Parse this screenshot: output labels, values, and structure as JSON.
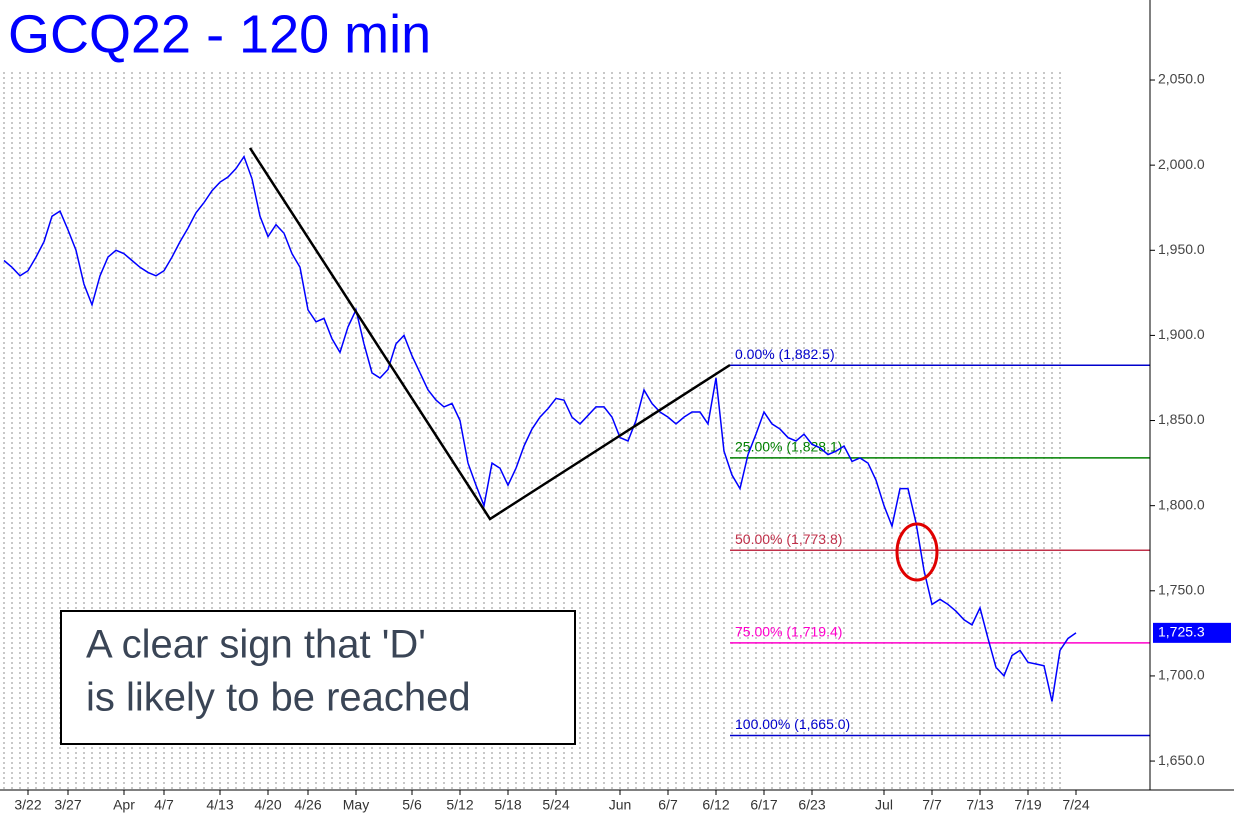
{
  "chart_data": {
    "type": "line",
    "title": "GCQ22 - 120 min",
    "annotation": [
      "A clear sign that 'D'",
      "is likely to be reached"
    ],
    "categories": [
      null,
      null,
      null,
      "3/22",
      null,
      null,
      null,
      null,
      "3/27",
      null,
      null,
      null,
      null,
      null,
      null,
      "Apr",
      null,
      null,
      null,
      null,
      "4/7",
      null,
      null,
      null,
      null,
      null,
      null,
      "4/13",
      null,
      null,
      null,
      null,
      null,
      "4/20",
      null,
      null,
      null,
      null,
      "4/26",
      null,
      null,
      null,
      null,
      null,
      "May",
      null,
      null,
      null,
      null,
      null,
      null,
      "5/6",
      null,
      null,
      null,
      null,
      null,
      "5/12",
      null,
      null,
      null,
      null,
      null,
      "5/18",
      null,
      null,
      null,
      null,
      null,
      "5/24",
      null,
      null,
      null,
      null,
      null,
      null,
      null,
      "Jun",
      null,
      null,
      null,
      null,
      null,
      "6/7",
      null,
      null,
      null,
      null,
      null,
      "6/12",
      null,
      null,
      null,
      null,
      null,
      "6/17",
      null,
      null,
      null,
      null,
      null,
      "6/23",
      null,
      null,
      null,
      null,
      null,
      null,
      null,
      null,
      "Jul",
      null,
      null,
      null,
      null,
      null,
      "7/7",
      null,
      null,
      null,
      null,
      null,
      "7/13",
      null,
      null,
      null,
      null,
      null,
      "7/19",
      null,
      null,
      null,
      null,
      null,
      "7/24"
    ],
    "values": [
      1944,
      1940,
      1935,
      1938,
      1946,
      1955,
      1970,
      1973,
      1962,
      1950,
      1930,
      1918,
      1935,
      1946,
      1950,
      1948,
      1944,
      1940,
      1937,
      1935,
      1938,
      1946,
      1955,
      1963,
      1972,
      1978,
      1985,
      1990,
      1993,
      1998,
      2005,
      1992,
      1970,
      1958,
      1965,
      1960,
      1948,
      1940,
      1915,
      1908,
      1910,
      1898,
      1890,
      1905,
      1915,
      1895,
      1878,
      1875,
      1880,
      1895,
      1900,
      1888,
      1878,
      1868,
      1862,
      1858,
      1860,
      1850,
      1825,
      1812,
      1800,
      1825,
      1822,
      1812,
      1822,
      1835,
      1845,
      1852,
      1857,
      1863,
      1862,
      1852,
      1848,
      1853,
      1858,
      1858,
      1852,
      1840,
      1838,
      1850,
      1868,
      1860,
      1855,
      1852,
      1848,
      1852,
      1855,
      1855,
      1848,
      1875,
      1832,
      1818,
      1810,
      1830,
      1842,
      1855,
      1848,
      1845,
      1840,
      1838,
      1842,
      1836,
      1834,
      1830,
      1832,
      1835,
      1826,
      1828,
      1825,
      1815,
      1800,
      1788,
      1810,
      1810,
      1790,
      1762,
      1742,
      1745,
      1742,
      1738,
      1733,
      1730,
      1740,
      1722,
      1705,
      1700,
      1712,
      1715,
      1708,
      1707,
      1706,
      1685,
      1715,
      1722,
      1725.3
    ],
    "color": "#0000ff",
    "ylim": [
      1633,
      2097
    ],
    "yticks": [
      {
        "value": 1650,
        "label": "1,650.0"
      },
      {
        "value": 1700,
        "label": "1,700.0"
      },
      {
        "value": 1750,
        "label": "1,750.0"
      },
      {
        "value": 1800,
        "label": "1,800.0"
      },
      {
        "value": 1850,
        "label": "1,850.0"
      },
      {
        "value": 1900,
        "label": "1,900.0"
      },
      {
        "value": 1950,
        "label": "1,950.0"
      },
      {
        "value": 2000,
        "label": "2,000.0"
      },
      {
        "value": 2050,
        "label": "2,050.0"
      }
    ],
    "last_price": {
      "value": 1725.3,
      "label": "1,725.3"
    },
    "levels": [
      {
        "label": "0.00% (1,882.5)",
        "value": 1882.5,
        "color": "#0000cc"
      },
      {
        "label": "25.00% (1,828.1)",
        "value": 1828.1,
        "color": "#008000"
      },
      {
        "label": "50.00% (1,773.8)",
        "value": 1773.8,
        "color": "#c0304a"
      },
      {
        "label": "75.00% (1,719.4)",
        "value": 1719.4,
        "color": "#ff00cc"
      },
      {
        "label": "100.00% (1,665.0)",
        "value": 1665.0,
        "color": "#0000cc"
      }
    ],
    "grid": true
  }
}
